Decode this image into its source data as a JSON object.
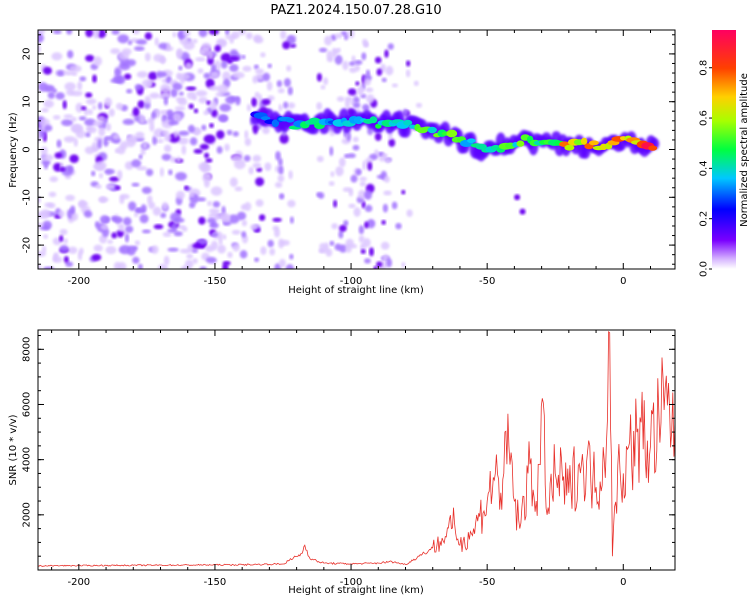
{
  "figure": {
    "title": "PAZ1.2024.150.07.28.G10"
  },
  "chart_data": [
    {
      "type": "heatmap",
      "name": "spectrogram",
      "xlabel": "Height of straight line (km)",
      "ylabel": "Frequency (Hz)",
      "xlim": [
        -215,
        19
      ],
      "ylim": [
        -25,
        25
      ],
      "xticks": [
        -200,
        -150,
        -100,
        -50,
        0
      ],
      "yticks": [
        -20,
        -10,
        0,
        10,
        20
      ],
      "colorbar": {
        "label": "Normalized spectral amplitude",
        "range": [
          0.0,
          0.95
        ],
        "ticks": [
          0.0,
          0.2,
          0.4,
          0.6,
          0.8
        ],
        "colormap": "hsv (violet to red)"
      },
      "feature_description_points": [
        {
          "x": -135,
          "y": 7,
          "amp": 0.25
        },
        {
          "x": -118,
          "y": 5,
          "amp": 0.45
        },
        {
          "x": -100,
          "y": 6,
          "amp": 0.35
        },
        {
          "x": -80,
          "y": 5,
          "amp": 0.5
        },
        {
          "x": -65,
          "y": 3,
          "amp": 0.5
        },
        {
          "x": -50,
          "y": 0,
          "amp": 0.45
        },
        {
          "x": -35,
          "y": 2,
          "amp": 0.5
        },
        {
          "x": -20,
          "y": 1,
          "amp": 0.7
        },
        {
          "x": -8,
          "y": 1,
          "amp": 0.75
        },
        {
          "x": 0,
          "y": 2,
          "amp": 0.7
        },
        {
          "x": 12,
          "y": 0,
          "amp": 0.9
        }
      ]
    },
    {
      "type": "line",
      "name": "snr",
      "xlabel": "Height of straight line (km)",
      "ylabel": "SNR (10 * v/v)",
      "xlim": [
        -215,
        19
      ],
      "ylim": [
        0,
        8700
      ],
      "xticks": [
        -200,
        -150,
        -100,
        -50,
        0
      ],
      "yticks": [
        2000,
        4000,
        6000,
        8000
      ],
      "color": "#e8302a",
      "series": [
        {
          "x": [
            -215,
            -200,
            -180,
            -160,
            -140,
            -125,
            -118,
            -117,
            -115,
            -110,
            -100,
            -90,
            -85,
            -80,
            -75,
            -70,
            -65,
            -62,
            -60,
            -55,
            -50,
            -47,
            -45,
            -42,
            -40,
            -38,
            -35,
            -32,
            -29,
            -28,
            -25,
            -20,
            -15,
            -10,
            -7,
            -5,
            -4,
            -2,
            0,
            5,
            10,
            15,
            19
          ],
          "y": [
            150,
            160,
            170,
            180,
            190,
            220,
            600,
            900,
            400,
            250,
            220,
            250,
            300,
            200,
            500,
            800,
            1200,
            1700,
            900,
            1500,
            2500,
            3500,
            2800,
            4500,
            2500,
            1500,
            3500,
            2500,
            5600,
            2000,
            3500,
            2800,
            4200,
            3000,
            4000,
            8600,
            500,
            3800,
            3500,
            5000,
            4500,
            5800,
            5400
          ]
        }
      ]
    }
  ]
}
